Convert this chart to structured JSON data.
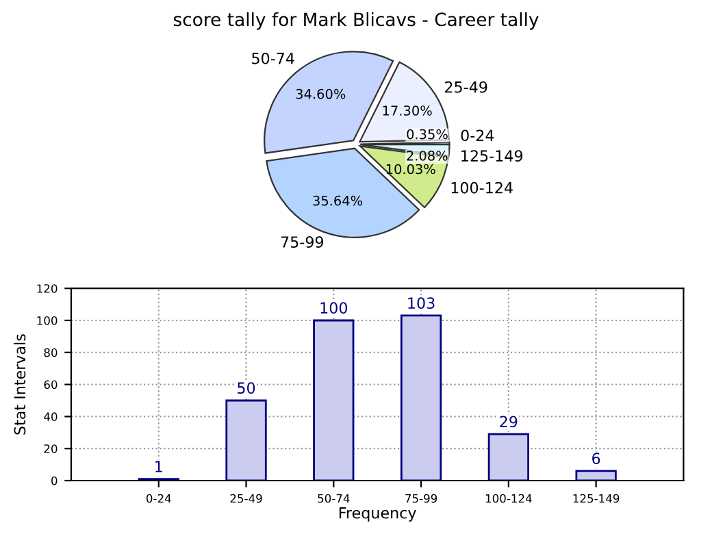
{
  "chart_data": [
    {
      "type": "pie",
      "title": "score tally for Mark Blicavs - Career tally",
      "categories": [
        "0-24",
        "25-49",
        "50-74",
        "75-99",
        "100-124",
        "125-149"
      ],
      "values": [
        0.35,
        17.3,
        34.6,
        35.64,
        10.03,
        2.08
      ],
      "value_labels": [
        "0.35%",
        "17.30%",
        "34.60%",
        "35.64%",
        "10.03%",
        "2.08%"
      ],
      "colors": [
        "#dde6ff",
        "#eaf0ff",
        "#c4d4ff",
        "#b3d4ff",
        "#d0eb8c",
        "#d7f5ff"
      ]
    },
    {
      "type": "bar",
      "categories": [
        "0-24",
        "25-49",
        "50-74",
        "75-99",
        "100-124",
        "125-149"
      ],
      "values": [
        1,
        50,
        100,
        103,
        29,
        6
      ],
      "color": "#ccccf0",
      "xlabel": "Frequency",
      "ylabel": "Stat Intervals",
      "ylim": [
        0,
        120
      ],
      "yticks": [
        0,
        20,
        40,
        60,
        80,
        100,
        120
      ],
      "grid": true,
      "data_labels": true
    }
  ]
}
